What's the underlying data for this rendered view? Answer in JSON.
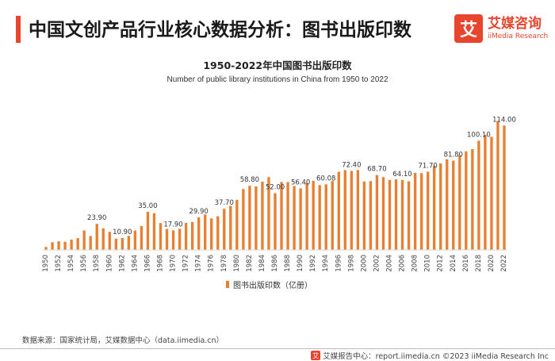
{
  "header": {
    "title": "中国文创产品行业核心数据分析：图书出版印数"
  },
  "logo": {
    "mark": "艾",
    "name_cn": "艾媒咨询",
    "name_en": "iiMedia Research"
  },
  "source": "数据来源：国家统计局，艾媒数据中心（data.iimedia.cn）",
  "footer": {
    "icon": "艾",
    "text": "艾媒报告中心：report.iimedia.cn  ©2023  iiMedia Research  Inc"
  },
  "colors": {
    "bar": "#e88032",
    "accent": "#e8452e"
  },
  "chart_data": {
    "type": "bar",
    "title": "1950-2022年中国图书出版印数",
    "subtitle": "Number of public library institutions in China from 1950 to 2022",
    "x": [
      1950,
      1951,
      1952,
      1953,
      1954,
      1955,
      1956,
      1957,
      1958,
      1959,
      1960,
      1961,
      1962,
      1963,
      1964,
      1965,
      1966,
      1967,
      1968,
      1969,
      1970,
      1971,
      1972,
      1973,
      1974,
      1975,
      1976,
      1977,
      1978,
      1979,
      1980,
      1981,
      1982,
      1983,
      1984,
      1985,
      1986,
      1987,
      1988,
      1989,
      1990,
      1991,
      1992,
      1993,
      1994,
      1995,
      1996,
      1997,
      1998,
      1999,
      2000,
      2001,
      2002,
      2003,
      2004,
      2005,
      2006,
      2007,
      2008,
      2009,
      2010,
      2011,
      2012,
      2013,
      2014,
      2015,
      2016,
      2017,
      2018,
      2019,
      2020,
      2021,
      2022
    ],
    "tick_labels": [
      "1950",
      "1952",
      "1954",
      "1956",
      "1958",
      "1960",
      "1962",
      "1964",
      "1966",
      "1968",
      "1970",
      "1972",
      "1974",
      "1976",
      "1978",
      "1980",
      "1982",
      "1984",
      "1986",
      "1988",
      "1990",
      "1992",
      "1994",
      "1996",
      "1998",
      "2000",
      "2002",
      "2004",
      "2006",
      "2008",
      "2010",
      "2012",
      "2014",
      "2016",
      "2018",
      "2020",
      "2022"
    ],
    "series": [
      {
        "name": "图书出版印数（亿册）",
        "values": [
          2.7,
          7.0,
          7.9,
          7.5,
          9.4,
          10.8,
          17.8,
          12.8,
          23.9,
          19.8,
          16.6,
          10.3,
          10.9,
          12.9,
          17.7,
          21.9,
          35.0,
          33.6,
          24.6,
          19.2,
          17.9,
          19.4,
          24.8,
          25.6,
          29.9,
          32.5,
          28.9,
          30.8,
          37.7,
          40.4,
          45.9,
          55.8,
          58.8,
          58.2,
          62.5,
          66.7,
          52.0,
          62.3,
          62.2,
          58.6,
          56.4,
          61.4,
          63.4,
          59.4,
          60.1,
          63.2,
          71.6,
          73.1,
          72.4,
          73.2,
          62.7,
          63.1,
          68.7,
          66.7,
          64.1,
          64.7,
          64.1,
          62.9,
          70.6,
          70.4,
          71.7,
          77.1,
          79.3,
          83.1,
          81.8,
          86.6,
          90.4,
          92.4,
          100.1,
          105.4,
          103.7,
          118.1,
          114.0
        ],
        "data_labels": [
          {
            "x": 1958,
            "value": "23.90"
          },
          {
            "x": 1962,
            "value": "10.90"
          },
          {
            "x": 1966,
            "value": "35.00"
          },
          {
            "x": 1970,
            "value": "17.90"
          },
          {
            "x": 1974,
            "value": "29.90"
          },
          {
            "x": 1978,
            "value": "37.70"
          },
          {
            "x": 1982,
            "value": "58.80"
          },
          {
            "x": 1986,
            "value": "52.00"
          },
          {
            "x": 1990,
            "value": "56.40"
          },
          {
            "x": 1994,
            "value": "60.08"
          },
          {
            "x": 1998,
            "value": "72.40"
          },
          {
            "x": 2002,
            "value": "68.70"
          },
          {
            "x": 2006,
            "value": "64.10"
          },
          {
            "x": 2010,
            "value": "71.70"
          },
          {
            "x": 2014,
            "value": "81.80"
          },
          {
            "x": 2018,
            "value": "100.10"
          },
          {
            "x": 2022,
            "value": "114.00"
          }
        ]
      }
    ],
    "ylim": [
      0,
      125
    ],
    "grid": false,
    "legend": "bottom"
  }
}
